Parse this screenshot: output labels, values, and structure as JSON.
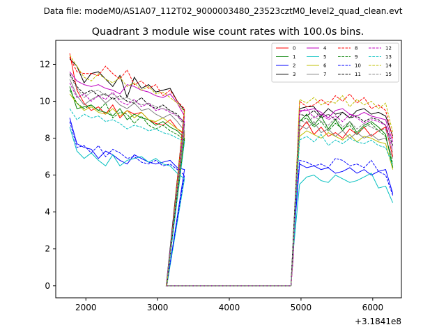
{
  "figure": {
    "suptitle": "Data file: modeM0/AS1A07_112T02_9000003480_23523cztM0_level2_quad_clean.evt",
    "offset_label": "+3.1841e8"
  },
  "chart_data": {
    "type": "line",
    "title": "Quadrant 3 module wise count rates with 100.0s bins.",
    "xlabel": "",
    "ylabel": "",
    "xlim": [
      1580,
      6400
    ],
    "ylim": [
      -0.65,
      13.3
    ],
    "x_ticks": [
      2000,
      3000,
      4000,
      5000,
      6000
    ],
    "y_ticks": [
      0,
      2,
      4,
      6,
      8,
      10,
      12
    ],
    "grid": false,
    "legend_position": "top-right",
    "legend_columns": 4,
    "x_base": 1775,
    "x_step": 100,
    "series": [
      {
        "name": "0",
        "color": "#ff0000",
        "dash": "solid",
        "values": [
          12.6,
          10.6,
          9.9,
          9.5,
          9.7,
          9.3,
          9.8,
          9.1,
          9.5,
          9.3,
          9.4,
          9.0,
          8.8,
          8.7,
          9.0,
          8.5,
          8.2
        ]
      },
      {
        "name": "1",
        "color": "#008000",
        "dash": "solid",
        "values": [
          10.8,
          9.6,
          9.7,
          9.8,
          9.5,
          9.4,
          9.2,
          9.6,
          9.0,
          9.3,
          9.1,
          9.0,
          8.7,
          8.9,
          8.6,
          8.4,
          8.0
        ]
      },
      {
        "name": "2",
        "color": "#0000ff",
        "dash": "solid",
        "values": [
          9.1,
          7.7,
          7.5,
          7.4,
          6.9,
          7.3,
          7.1,
          6.8,
          6.6,
          7.1,
          6.9,
          6.7,
          6.6,
          6.7,
          6.8,
          6.4,
          6.3
        ]
      },
      {
        "name": "3",
        "color": "#000000",
        "dash": "solid",
        "values": [
          12.3,
          11.9,
          11.0,
          11.5,
          11.6,
          11.2,
          10.8,
          11.4,
          10.2,
          11.3,
          10.7,
          10.9,
          10.5,
          10.6,
          10.7,
          10.0,
          9.5
        ]
      },
      {
        "name": "4",
        "color": "#bf00bf",
        "dash": "solid",
        "values": [
          11.6,
          11.1,
          10.9,
          10.8,
          10.9,
          10.7,
          10.6,
          10.4,
          10.9,
          10.8,
          10.6,
          10.5,
          10.3,
          10.2,
          10.4,
          9.9,
          9.2
        ]
      },
      {
        "name": "5",
        "color": "#00bfbf",
        "dash": "solid",
        "values": [
          8.6,
          7.3,
          6.9,
          7.2,
          6.8,
          6.5,
          7.1,
          6.5,
          6.8,
          6.9,
          7.0,
          6.7,
          6.9,
          6.6,
          6.5,
          6.1,
          5.8
        ]
      },
      {
        "name": "6",
        "color": "#bfbf00",
        "dash": "solid",
        "values": [
          10.4,
          9.9,
          9.5,
          9.7,
          9.4,
          9.3,
          9.6,
          9.2,
          9.5,
          9.1,
          9.4,
          9.0,
          8.9,
          9.1,
          8.8,
          8.5,
          8.3
        ]
      },
      {
        "name": "7",
        "color": "#808080",
        "dash": "solid",
        "values": [
          11.2,
          10.3,
          9.8,
          10.1,
          10.3,
          9.9,
          10.2,
          9.8,
          9.6,
          9.9,
          9.5,
          9.6,
          9.3,
          9.1,
          9.3,
          8.9,
          8.4
        ]
      },
      {
        "name": "8",
        "color": "#ff0000",
        "dash": "dashed",
        "values": [
          12.4,
          11.6,
          11.5,
          11.5,
          11.4,
          11.9,
          11.5,
          11.2,
          11.7,
          10.9,
          11.1,
          10.7,
          10.9,
          10.3,
          10.6,
          10.0,
          9.6
        ]
      },
      {
        "name": "9",
        "color": "#008000",
        "dash": "dashed",
        "values": [
          10.6,
          9.9,
          9.6,
          9.8,
          9.5,
          9.9,
          9.1,
          9.4,
          9.3,
          8.8,
          9.2,
          8.7,
          8.5,
          8.7,
          8.4,
          8.2,
          7.9
        ]
      },
      {
        "name": "10",
        "color": "#0000ff",
        "dash": "dashed",
        "values": [
          8.9,
          7.5,
          7.6,
          7.2,
          7.6,
          7.0,
          7.4,
          7.2,
          6.9,
          7.0,
          6.7,
          6.6,
          6.8,
          6.5,
          6.6,
          6.3,
          6.0
        ]
      },
      {
        "name": "11",
        "color": "#000000",
        "dash": "dashed",
        "values": [
          11.5,
          10.8,
          10.4,
          10.6,
          10.3,
          10.4,
          10.1,
          10.3,
          10.0,
          9.9,
          10.2,
          9.8,
          9.6,
          9.8,
          9.5,
          9.3,
          8.8
        ]
      },
      {
        "name": "12",
        "color": "#bf00bf",
        "dash": "dashed",
        "values": [
          11.0,
          10.2,
          10.4,
          10.0,
          10.3,
          10.1,
          10.5,
          10.0,
          9.8,
          10.1,
          9.7,
          9.9,
          9.5,
          9.6,
          9.4,
          9.2,
          8.9
        ]
      },
      {
        "name": "13",
        "color": "#00bfbf",
        "dash": "dashed",
        "values": [
          9.6,
          9.0,
          9.3,
          9.1,
          9.2,
          8.9,
          9.0,
          8.8,
          8.5,
          8.7,
          8.6,
          8.4,
          8.5,
          8.3,
          8.2,
          8.0,
          7.8
        ]
      },
      {
        "name": "14",
        "color": "#bfbf00",
        "dash": "dashed",
        "values": [
          12.5,
          11.9,
          11.3,
          11.1,
          11.5,
          11.2,
          11.0,
          11.3,
          10.8,
          11.0,
          10.6,
          10.8,
          10.4,
          10.5,
          10.2,
          9.9,
          9.4
        ]
      },
      {
        "name": "15",
        "color": "#808080",
        "dash": "dashed",
        "values": [
          11.4,
          10.7,
          10.2,
          10.5,
          10.6,
          10.3,
          10.4,
          10.1,
          10.2,
          10.0,
          9.8,
          9.9,
          9.7,
          9.6,
          9.5,
          9.2,
          8.7
        ]
      }
    ],
    "series_right": [
      {
        "name": "0",
        "values": [
          8.4,
          8.9,
          8.2,
          8.6,
          8.1,
          8.3,
          8.0,
          8.5,
          8.2,
          8.6,
          8.1,
          8.4,
          8.6,
          7.0
        ]
      },
      {
        "name": "1",
        "values": [
          8.9,
          9.3,
          8.7,
          9.2,
          8.5,
          9.0,
          8.4,
          8.9,
          8.3,
          8.7,
          8.9,
          8.6,
          8.2,
          6.4
        ]
      },
      {
        "name": "2",
        "values": [
          6.6,
          6.4,
          6.5,
          6.3,
          6.4,
          6.1,
          6.2,
          6.4,
          6.1,
          6.3,
          6.0,
          6.2,
          6.3,
          5.0
        ]
      },
      {
        "name": "3",
        "values": [
          9.6,
          9.7,
          9.7,
          9.2,
          9.6,
          9.3,
          9.4,
          9.1,
          9.5,
          9.6,
          9.3,
          9.4,
          9.2,
          8.1
        ]
      },
      {
        "name": "4",
        "values": [
          9.5,
          9.5,
          9.6,
          9.4,
          9.1,
          9.5,
          9.6,
          9.3,
          9.2,
          9.4,
          9.2,
          9.1,
          9.0,
          7.8
        ]
      },
      {
        "name": "5",
        "values": [
          5.5,
          5.9,
          6.0,
          5.7,
          5.6,
          6.0,
          5.8,
          5.6,
          5.7,
          5.9,
          6.1,
          5.3,
          5.4,
          4.5
        ]
      },
      {
        "name": "6",
        "values": [
          8.1,
          8.4,
          8.2,
          8.0,
          8.3,
          8.1,
          7.9,
          8.2,
          7.8,
          8.1,
          8.0,
          7.8,
          7.7,
          6.3
        ]
      },
      {
        "name": "7",
        "values": [
          8.7,
          8.5,
          8.9,
          8.3,
          8.5,
          8.1,
          8.4,
          8.0,
          8.3,
          8.0,
          8.2,
          7.9,
          8.0,
          6.9
        ]
      },
      {
        "name": "8",
        "values": [
          10.0,
          9.7,
          9.8,
          10.1,
          9.8,
          10.3,
          10.0,
          10.4,
          9.9,
          10.2,
          9.6,
          9.8,
          9.5,
          8.0
        ]
      },
      {
        "name": "9",
        "values": [
          8.9,
          9.1,
          8.6,
          8.9,
          8.4,
          8.8,
          8.5,
          8.7,
          8.2,
          8.6,
          8.8,
          8.4,
          8.1,
          6.6
        ]
      },
      {
        "name": "10",
        "values": [
          6.8,
          6.7,
          6.5,
          6.6,
          6.4,
          6.9,
          6.8,
          6.5,
          6.6,
          6.4,
          6.8,
          6.2,
          6.0,
          4.9
        ]
      },
      {
        "name": "11",
        "values": [
          9.3,
          9.2,
          9.5,
          9.1,
          9.3,
          9.0,
          9.4,
          9.1,
          9.2,
          8.9,
          9.1,
          9.0,
          8.7,
          7.6
        ]
      },
      {
        "name": "12",
        "values": [
          9.4,
          9.6,
          9.1,
          9.3,
          9.0,
          9.2,
          8.9,
          9.3,
          9.1,
          8.8,
          9.0,
          8.9,
          8.7,
          7.4
        ]
      },
      {
        "name": "13",
        "values": [
          7.9,
          8.1,
          7.8,
          8.2,
          7.6,
          7.9,
          7.7,
          8.0,
          7.8,
          7.7,
          7.9,
          7.6,
          7.5,
          6.5
        ]
      },
      {
        "name": "14",
        "values": [
          10.1,
          9.9,
          10.2,
          9.8,
          10.0,
          9.9,
          10.3,
          9.7,
          10.1,
          9.8,
          10.0,
          9.6,
          9.9,
          8.3
        ]
      },
      {
        "name": "15",
        "values": [
          9.0,
          8.8,
          9.2,
          8.9,
          8.7,
          9.1,
          8.6,
          8.9,
          8.5,
          8.8,
          8.6,
          8.4,
          8.5,
          7.2
        ]
      }
    ],
    "right_x_base": 4905,
    "gap_x": [
      3080,
      4880
    ],
    "gap_value": 0
  }
}
